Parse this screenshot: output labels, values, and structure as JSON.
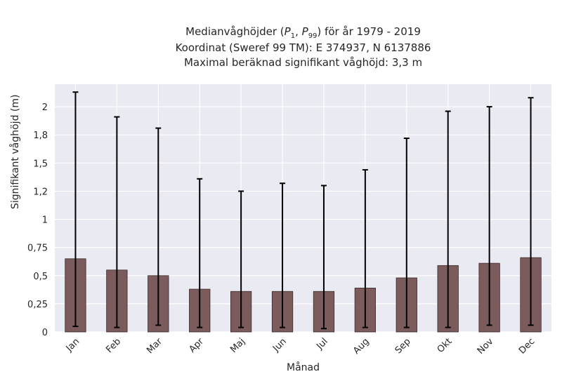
{
  "title": {
    "line1_pre": "Medianvåghöjder (",
    "p": "P",
    "sub1": "1",
    "comma": ", ",
    "sub2": "99",
    "line1_post": ") för år 1979 - 2019",
    "line2": "Koordinat (Sweref 99 TM): E 374937, N 6137886",
    "line3": "Maximal beräknad signifikant våghöjd: 3,3 m"
  },
  "chart_data": {
    "type": "bar",
    "title": "Medianvåghöjder (P1, P99) för år 1979 - 2019",
    "xlabel": "Månad",
    "ylabel": "Signifikant våghöjd (m)",
    "categories": [
      "Jan",
      "Feb",
      "Mar",
      "Apr",
      "Maj",
      "Jun",
      "Jul",
      "Aug",
      "Sep",
      "Okt",
      "Nov",
      "Dec"
    ],
    "values": [
      0.65,
      0.55,
      0.5,
      0.38,
      0.36,
      0.36,
      0.36,
      0.39,
      0.48,
      0.59,
      0.61,
      0.66
    ],
    "err_low": [
      0.05,
      0.04,
      0.06,
      0.04,
      0.04,
      0.04,
      0.03,
      0.04,
      0.04,
      0.04,
      0.06,
      0.06
    ],
    "err_high": [
      2.13,
      1.91,
      1.81,
      1.36,
      1.25,
      1.32,
      1.3,
      1.44,
      1.72,
      1.96,
      2.0,
      2.08
    ],
    "ylim": [
      0,
      2.2
    ],
    "yticks": [
      0,
      0.25,
      0.5,
      0.75,
      1,
      1.25,
      1.5,
      1.75,
      2
    ],
    "ytick_labels": [
      "0",
      "0,25",
      "0,5",
      "0,75",
      "1",
      "1,2",
      "1,5",
      "1,8",
      "2"
    ],
    "grid": true,
    "colors": {
      "bar": "#7b5b5b",
      "bar_edge": "#3a2a2a",
      "plot_bg": "#eaeaf2",
      "grid": "#ffffff",
      "error": "#000000"
    }
  }
}
